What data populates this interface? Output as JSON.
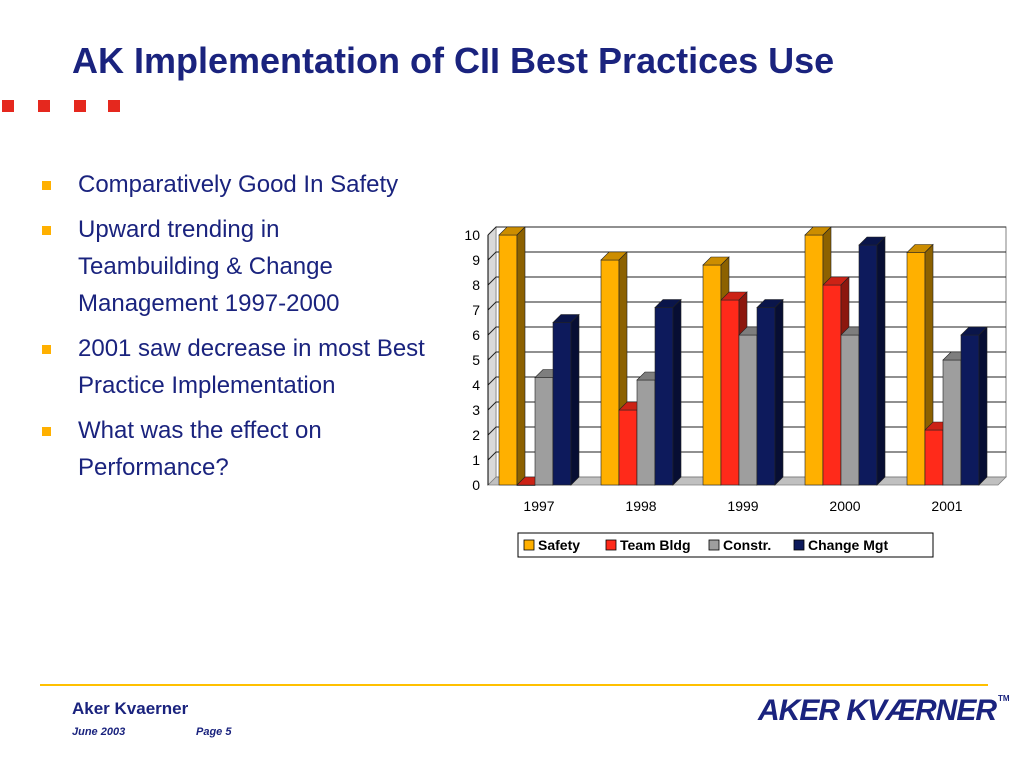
{
  "slide": {
    "title": "AK Implementation of CII Best Practices Use",
    "accent_color": "#e5281e",
    "title_color": "#1a237e"
  },
  "bullets": [
    {
      "text": "Comparatively Good In Safety"
    },
    {
      "text": "Upward trending in Teambuilding & Change Management 1997-2000"
    },
    {
      "text": "2001 saw decrease in most Best Practice Implementation"
    },
    {
      "text": "What was the effect on Performance?"
    }
  ],
  "footer": {
    "company": "Aker Kvaerner",
    "date": "June 2003",
    "page": "Page 5",
    "logo_text": "AKER KVÆRNER",
    "logo_tm": "TM"
  },
  "chart_data": {
    "type": "bar",
    "style": "3d-clustered",
    "categories": [
      "1997",
      "1998",
      "1999",
      "2000",
      "2001"
    ],
    "series": [
      {
        "name": "Safety",
        "color": "#ffb000",
        "values": [
          10,
          9,
          8.8,
          10,
          9.3
        ]
      },
      {
        "name": "Team Bldg",
        "color": "#ff2a1a",
        "values": [
          0,
          3,
          7.4,
          8,
          2.2
        ]
      },
      {
        "name": "Constr.",
        "color": "#9e9e9e",
        "values": [
          4.3,
          4.2,
          6,
          6,
          5
        ]
      },
      {
        "name": "Change Mgt",
        "color": "#0d1a5c",
        "values": [
          6.5,
          7.1,
          7.1,
          9.6,
          6
        ]
      }
    ],
    "ylim": [
      0,
      10
    ],
    "yticks": [
      "0",
      "1",
      "2",
      "3",
      "4",
      "5",
      "6",
      "7",
      "8",
      "9",
      "10"
    ],
    "grid": true,
    "legend": "bottom"
  }
}
